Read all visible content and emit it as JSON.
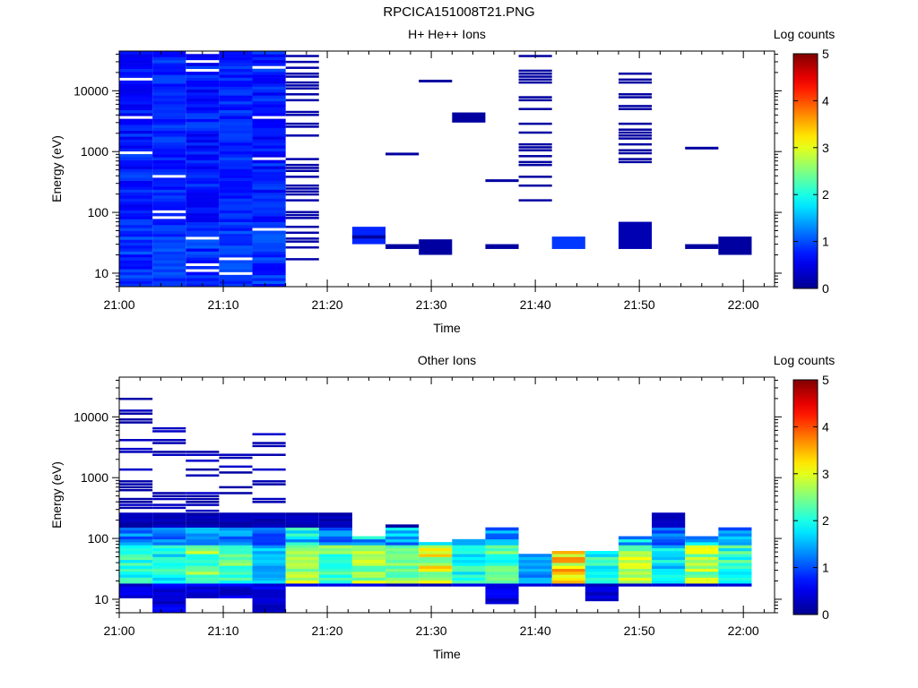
{
  "title": "RPCICA151008T21.PNG",
  "colorbar": {
    "label": "Log counts",
    "ticks": [
      "0",
      "1",
      "2",
      "3",
      "4",
      "5"
    ],
    "range": [
      0,
      5
    ],
    "colormap": [
      "#00008f",
      "#0000ff",
      "#00ffff",
      "#ffff00",
      "#ff0000",
      "#800000"
    ]
  },
  "chart_data": [
    {
      "type": "heatmap",
      "title": "H+ He++ Ions",
      "xlabel": "Time",
      "ylabel": "Energy (eV)",
      "xticks": [
        "21:00",
        "21:10",
        "21:20",
        "21:30",
        "21:40",
        "21:50",
        "22:00"
      ],
      "xlim_minutes": [
        0,
        63
      ],
      "yscale": "log",
      "ylim": [
        6,
        45000
      ],
      "yticks": [
        "10",
        "100",
        "1000",
        "10000"
      ],
      "zlabel": "Log counts",
      "zlim": [
        0,
        5
      ],
      "columns_minutes": [
        0,
        3.2,
        6.4,
        9.6,
        12.8,
        16.0,
        19.2,
        22.4,
        25.6,
        28.8,
        32.0,
        35.2,
        38.4,
        41.6,
        44.8,
        48.0,
        51.2,
        54.4,
        57.6,
        60.8
      ],
      "dense_columns": [
        {
          "t0": 0,
          "t1": 3.2,
          "e_min": 6,
          "e_max": 45000,
          "level_min": 0.5,
          "level_max": 1.0
        },
        {
          "t0": 3.2,
          "t1": 6.4,
          "e_min": 6,
          "e_max": 45000,
          "level_min": 0.6,
          "level_max": 1.0
        },
        {
          "t0": 6.4,
          "t1": 9.6,
          "e_min": 6,
          "e_max": 45000,
          "level_min": 0.5,
          "level_max": 1.0
        },
        {
          "t0": 9.6,
          "t1": 12.8,
          "e_min": 6,
          "e_max": 45000,
          "level_min": 0.6,
          "level_max": 1.0
        },
        {
          "t0": 12.8,
          "t1": 16.0,
          "e_min": 6,
          "e_max": 45000,
          "level_min": 0.5,
          "level_max": 1.0
        }
      ],
      "cells": [
        {
          "t0": 16.0,
          "t1": 19.2,
          "e": [
            17,
            40000
          ],
          "level": 0.15,
          "sparse": true
        },
        {
          "t0": 22.4,
          "t1": 25.6,
          "e": [
            30,
            58
          ],
          "level": 0.8
        },
        {
          "t0": 22.4,
          "t1": 25.6,
          "e": [
            37,
            42
          ],
          "level": 0.1
        },
        {
          "t0": 25.6,
          "t1": 28.8,
          "e": [
            25,
            30
          ],
          "level": 0.1
        },
        {
          "t0": 25.6,
          "t1": 28.8,
          "e": [
            950,
            960
          ],
          "level": 0.1
        },
        {
          "t0": 28.8,
          "t1": 32.0,
          "e": [
            20,
            36
          ],
          "level": 0.1
        },
        {
          "t0": 28.8,
          "t1": 32.0,
          "e": [
            15000,
            15200
          ],
          "level": 0.1
        },
        {
          "t0": 32.0,
          "t1": 35.2,
          "e": [
            3000,
            4400
          ],
          "level": 0.1
        },
        {
          "t0": 35.2,
          "t1": 38.4,
          "e": [
            25,
            30
          ],
          "level": 0.1
        },
        {
          "t0": 35.2,
          "t1": 38.4,
          "e": [
            340,
            350
          ],
          "level": 0.1
        },
        {
          "t0": 38.4,
          "t1": 41.6,
          "e": [
            150,
            40000
          ],
          "level": 0.1,
          "sparse": true
        },
        {
          "t0": 41.6,
          "t1": 44.8,
          "e": [
            25,
            40
          ],
          "level": 0.9
        },
        {
          "t0": 48.0,
          "t1": 51.2,
          "e": [
            25,
            70
          ],
          "level": 0.2
        },
        {
          "t0": 48.0,
          "t1": 51.2,
          "e": [
            700,
            27000
          ],
          "level": 0.1,
          "sparse": true
        },
        {
          "t0": 54.4,
          "t1": 57.6,
          "e": [
            25,
            30
          ],
          "level": 0.1
        },
        {
          "t0": 54.4,
          "t1": 57.6,
          "e": [
            1150,
            1200
          ],
          "level": 0.1
        },
        {
          "t0": 57.6,
          "t1": 60.8,
          "e": [
            20,
            40
          ],
          "level": 0.1
        }
      ]
    },
    {
      "type": "heatmap",
      "title": "Other Ions",
      "xlabel": "Time",
      "ylabel": "Energy (eV)",
      "xticks": [
        "21:00",
        "21:10",
        "21:20",
        "21:30",
        "21:40",
        "21:50",
        "22:00"
      ],
      "xlim_minutes": [
        0,
        63
      ],
      "yscale": "log",
      "ylim": [
        6,
        45000
      ],
      "yticks": [
        "10",
        "100",
        "1000",
        "10000"
      ],
      "zlabel": "Log counts",
      "zlim": [
        0,
        5
      ],
      "columns": [
        {
          "t0": 0,
          "t1": 3.2,
          "e_min": 10,
          "e_max": 18000,
          "peak": 2.3
        },
        {
          "t0": 3.2,
          "t1": 6.4,
          "e_min": 6,
          "e_max": 7000,
          "peak": 2.2
        },
        {
          "t0": 6.4,
          "t1": 9.6,
          "e_min": 10,
          "e_max": 2500,
          "peak": 2.8
        },
        {
          "t0": 9.6,
          "t1": 12.8,
          "e_min": 10,
          "e_max": 3000,
          "peak": 2.6
        },
        {
          "t0": 12.8,
          "t1": 16.0,
          "e_min": 6,
          "e_max": 6000,
          "peak": 1.8
        },
        {
          "t0": 16.0,
          "t1": 19.2,
          "e_min": 15,
          "e_max": 300,
          "peak": 3.2
        },
        {
          "t0": 19.2,
          "t1": 22.4,
          "e_min": 15,
          "e_max": 280,
          "peak": 2.6
        },
        {
          "t0": 22.4,
          "t1": 25.6,
          "e_min": 15,
          "e_max": 100,
          "peak": 3.0
        },
        {
          "t0": 25.6,
          "t1": 28.8,
          "e_min": 15,
          "e_max": 160,
          "peak": 2.9
        },
        {
          "t0": 28.8,
          "t1": 32.0,
          "e_min": 15,
          "e_max": 80,
          "peak": 3.3
        },
        {
          "t0": 32.0,
          "t1": 35.2,
          "e_min": 15,
          "e_max": 90,
          "peak": 2.2
        },
        {
          "t0": 35.2,
          "t1": 38.4,
          "e_min": 8,
          "e_max": 140,
          "peak": 2.6
        },
        {
          "t0": 38.4,
          "t1": 41.6,
          "e_min": 15,
          "e_max": 50,
          "peak": 1.6
        },
        {
          "t0": 41.6,
          "t1": 44.8,
          "e_min": 15,
          "e_max": 60,
          "peak": 3.6
        },
        {
          "t0": 44.8,
          "t1": 48.0,
          "e_min": 9,
          "e_max": 60,
          "peak": 2.3
        },
        {
          "t0": 48.0,
          "t1": 51.2,
          "e_min": 15,
          "e_max": 95,
          "peak": 3.1
        },
        {
          "t0": 51.2,
          "t1": 54.4,
          "e_min": 15,
          "e_max": 280,
          "peak": 2.0
        },
        {
          "t0": 54.4,
          "t1": 57.6,
          "e_min": 15,
          "e_max": 100,
          "peak": 3.0
        },
        {
          "t0": 57.6,
          "t1": 60.8,
          "e_min": 15,
          "e_max": 140,
          "peak": 2.4
        }
      ]
    }
  ]
}
